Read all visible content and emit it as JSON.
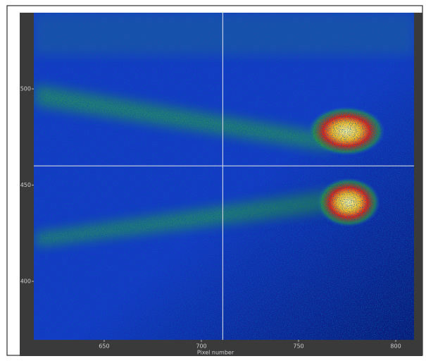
{
  "chart_data": {
    "type": "image",
    "x_label": "Pixel number",
    "xlim": [
      613.8,
      809.4
    ],
    "xticks": [
      650,
      700,
      750,
      800
    ],
    "ylim": [
      369.6,
      539.6
    ],
    "yticks": [
      400,
      450,
      500
    ],
    "crosshair": {
      "x": 711,
      "y": 460
    }
  }
}
